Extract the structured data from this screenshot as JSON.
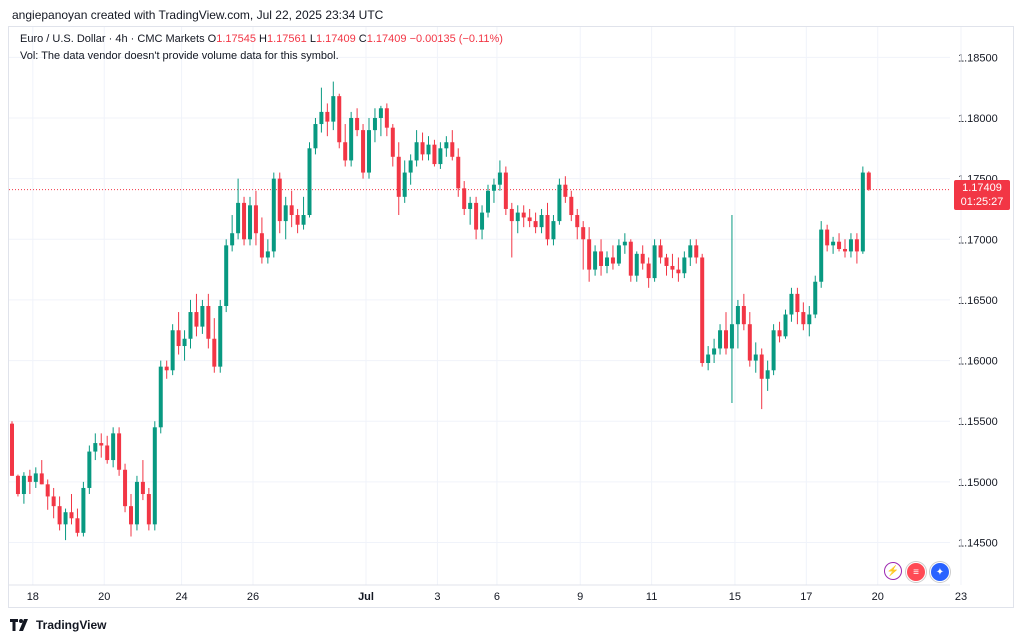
{
  "header": {
    "text": "angiepanoyan created with TradingView.com, Jul 22, 2025 23:34 UTC"
  },
  "legend": {
    "symbol": "Euro / U.S. Dollar · 4h · CMC Markets",
    "open_label": "O",
    "open": "1.17545",
    "high_label": "H",
    "high": "1.17561",
    "low_label": "L",
    "low": "1.17409",
    "close_label": "C",
    "close": "1.17409",
    "change": "−0.00135 (−0.11%)",
    "vol_note": "Vol: The data vendor doesn't provide volume data for this symbol."
  },
  "last_price": {
    "price": "1.17409",
    "countdown": "01:25:27"
  },
  "footer": {
    "brand": "TradingView"
  },
  "badges": [
    "bolt-icon",
    "us-flag-icon",
    "eu-flag-icon"
  ],
  "colors": {
    "up": "#089981",
    "down": "#f23645",
    "grid": "#f0f3fa",
    "text": "#131722"
  },
  "chart_data": {
    "type": "candlestick",
    "title": "Euro / U.S. Dollar · 4h · CMC Markets",
    "ylim": [
      1.1415,
      1.1875
    ],
    "y_ticks": [
      "1.14500",
      "1.15000",
      "1.15500",
      "1.16000",
      "1.16500",
      "1.17000",
      "1.17500",
      "1.18000",
      "1.18500"
    ],
    "x_ticks": [
      "18",
      "20",
      "24",
      "26",
      "Jul",
      "3",
      "6",
      "9",
      "11",
      "15",
      "17",
      "20",
      "23"
    ],
    "x_tick_index": [
      3.5,
      15.5,
      28.5,
      40.5,
      59.5,
      71.5,
      81.5,
      95.5,
      107.5,
      121.5,
      133.5,
      145.5,
      159.5
    ],
    "last_price_line": 1.17409,
    "candles": [
      [
        1.1548,
        1.155,
        1.1505,
        1.1505
      ],
      [
        1.1505,
        1.1506,
        1.1488,
        1.149
      ],
      [
        1.149,
        1.1508,
        1.1482,
        1.1505
      ],
      [
        1.1505,
        1.151,
        1.149,
        1.15
      ],
      [
        1.15,
        1.1512,
        1.1495,
        1.1507
      ],
      [
        1.1507,
        1.1518,
        1.1498,
        1.1498
      ],
      [
        1.1498,
        1.1502,
        1.1477,
        1.1488
      ],
      [
        1.1488,
        1.1495,
        1.147,
        1.148
      ],
      [
        1.148,
        1.1488,
        1.146,
        1.1465
      ],
      [
        1.1465,
        1.1478,
        1.1452,
        1.1475
      ],
      [
        1.1475,
        1.149,
        1.1465,
        1.147
      ],
      [
        1.147,
        1.1478,
        1.1455,
        1.1458
      ],
      [
        1.1458,
        1.15,
        1.1455,
        1.1495
      ],
      [
        1.1495,
        1.153,
        1.149,
        1.1525
      ],
      [
        1.1525,
        1.154,
        1.1518,
        1.1532
      ],
      [
        1.1532,
        1.154,
        1.152,
        1.153
      ],
      [
        1.153,
        1.1538,
        1.1515,
        1.1518
      ],
      [
        1.1518,
        1.1545,
        1.1512,
        1.154
      ],
      [
        1.154,
        1.1545,
        1.1505,
        1.151
      ],
      [
        1.151,
        1.1515,
        1.1475,
        1.148
      ],
      [
        1.148,
        1.149,
        1.1455,
        1.1465
      ],
      [
        1.1465,
        1.1505,
        1.146,
        1.15
      ],
      [
        1.15,
        1.1518,
        1.1485,
        1.149
      ],
      [
        1.149,
        1.1495,
        1.146,
        1.1465
      ],
      [
        1.1465,
        1.155,
        1.146,
        1.1545
      ],
      [
        1.1545,
        1.16,
        1.154,
        1.1595
      ],
      [
        1.1595,
        1.16,
        1.1585,
        1.1592
      ],
      [
        1.1592,
        1.163,
        1.1588,
        1.1625
      ],
      [
        1.1625,
        1.164,
        1.1605,
        1.1612
      ],
      [
        1.1612,
        1.1625,
        1.16,
        1.1618
      ],
      [
        1.1618,
        1.165,
        1.161,
        1.164
      ],
      [
        1.164,
        1.1655,
        1.162,
        1.1628
      ],
      [
        1.1628,
        1.165,
        1.1622,
        1.1645
      ],
      [
        1.1645,
        1.1655,
        1.161,
        1.1618
      ],
      [
        1.1618,
        1.1635,
        1.159,
        1.1595
      ],
      [
        1.1595,
        1.165,
        1.159,
        1.1645
      ],
      [
        1.1645,
        1.17,
        1.164,
        1.1695
      ],
      [
        1.1695,
        1.172,
        1.169,
        1.1705
      ],
      [
        1.1705,
        1.175,
        1.17,
        1.173
      ],
      [
        1.173,
        1.1735,
        1.1695,
        1.17
      ],
      [
        1.17,
        1.1735,
        1.1695,
        1.1728
      ],
      [
        1.1728,
        1.174,
        1.1695,
        1.1705
      ],
      [
        1.1705,
        1.1718,
        1.168,
        1.1685
      ],
      [
        1.1685,
        1.17,
        1.168,
        1.169
      ],
      [
        1.169,
        1.1755,
        1.1685,
        1.175
      ],
      [
        1.175,
        1.1755,
        1.1705,
        1.1715
      ],
      [
        1.1715,
        1.1735,
        1.17,
        1.1728
      ],
      [
        1.1728,
        1.174,
        1.171,
        1.172
      ],
      [
        1.172,
        1.1725,
        1.1705,
        1.1712
      ],
      [
        1.1712,
        1.1735,
        1.1708,
        1.172
      ],
      [
        1.172,
        1.178,
        1.1718,
        1.1775
      ],
      [
        1.1775,
        1.18,
        1.177,
        1.1795
      ],
      [
        1.1795,
        1.1825,
        1.1788,
        1.1805
      ],
      [
        1.1805,
        1.1812,
        1.1785,
        1.1797
      ],
      [
        1.1797,
        1.183,
        1.179,
        1.1818
      ],
      [
        1.1818,
        1.182,
        1.1775,
        1.178
      ],
      [
        1.178,
        1.1795,
        1.176,
        1.1765
      ],
      [
        1.1765,
        1.1805,
        1.176,
        1.18
      ],
      [
        1.18,
        1.1808,
        1.1785,
        1.179
      ],
      [
        1.179,
        1.1795,
        1.175,
        1.1755
      ],
      [
        1.1755,
        1.18,
        1.175,
        1.179
      ],
      [
        1.179,
        1.1808,
        1.178,
        1.18
      ],
      [
        1.18,
        1.181,
        1.1785,
        1.1808
      ],
      [
        1.1808,
        1.1812,
        1.1785,
        1.1792
      ],
      [
        1.1792,
        1.1795,
        1.176,
        1.1768
      ],
      [
        1.1768,
        1.178,
        1.172,
        1.1735
      ],
      [
        1.1735,
        1.1765,
        1.173,
        1.1755
      ],
      [
        1.1755,
        1.177,
        1.1745,
        1.1765
      ],
      [
        1.1765,
        1.179,
        1.176,
        1.178
      ],
      [
        1.178,
        1.1788,
        1.1765,
        1.177
      ],
      [
        1.177,
        1.1785,
        1.1765,
        1.1778
      ],
      [
        1.1778,
        1.1782,
        1.176,
        1.1762
      ],
      [
        1.1762,
        1.178,
        1.1758,
        1.1775
      ],
      [
        1.1775,
        1.1785,
        1.1768,
        1.178
      ],
      [
        1.178,
        1.179,
        1.1765,
        1.1768
      ],
      [
        1.1768,
        1.1775,
        1.1735,
        1.1742
      ],
      [
        1.1742,
        1.1748,
        1.172,
        1.1725
      ],
      [
        1.1725,
        1.1735,
        1.1712,
        1.173
      ],
      [
        1.173,
        1.1735,
        1.17,
        1.1708
      ],
      [
        1.1708,
        1.1728,
        1.17,
        1.1722
      ],
      [
        1.1722,
        1.1745,
        1.1718,
        1.174
      ],
      [
        1.174,
        1.175,
        1.173,
        1.1745
      ],
      [
        1.1745,
        1.1765,
        1.174,
        1.1755
      ],
      [
        1.1755,
        1.176,
        1.172,
        1.1725
      ],
      [
        1.1725,
        1.173,
        1.1685,
        1.1715
      ],
      [
        1.1715,
        1.1728,
        1.1705,
        1.1722
      ],
      [
        1.1722,
        1.1728,
        1.171,
        1.1718
      ],
      [
        1.1718,
        1.1725,
        1.171,
        1.1715
      ],
      [
        1.1715,
        1.1722,
        1.1705,
        1.171
      ],
      [
        1.171,
        1.1725,
        1.1705,
        1.172
      ],
      [
        1.172,
        1.173,
        1.1695,
        1.17
      ],
      [
        1.17,
        1.172,
        1.1695,
        1.1715
      ],
      [
        1.1715,
        1.175,
        1.1712,
        1.1745
      ],
      [
        1.1745,
        1.1752,
        1.173,
        1.1735
      ],
      [
        1.1735,
        1.174,
        1.1715,
        1.172
      ],
      [
        1.172,
        1.1725,
        1.17,
        1.171
      ],
      [
        1.171,
        1.1715,
        1.1675,
        1.17
      ],
      [
        1.17,
        1.171,
        1.1665,
        1.1675
      ],
      [
        1.1675,
        1.1695,
        1.167,
        1.169
      ],
      [
        1.169,
        1.17,
        1.167,
        1.1678
      ],
      [
        1.1678,
        1.169,
        1.1672,
        1.1685
      ],
      [
        1.1685,
        1.1695,
        1.1675,
        1.168
      ],
      [
        1.168,
        1.17,
        1.1678,
        1.1695
      ],
      [
        1.1695,
        1.1705,
        1.1688,
        1.1698
      ],
      [
        1.1698,
        1.17,
        1.1665,
        1.167
      ],
      [
        1.167,
        1.169,
        1.1665,
        1.1688
      ],
      [
        1.1688,
        1.1695,
        1.1675,
        1.168
      ],
      [
        1.168,
        1.1685,
        1.166,
        1.1668
      ],
      [
        1.1668,
        1.17,
        1.1665,
        1.1695
      ],
      [
        1.1695,
        1.17,
        1.168,
        1.1685
      ],
      [
        1.1685,
        1.1688,
        1.167,
        1.1678
      ],
      [
        1.1678,
        1.1688,
        1.1668,
        1.1675
      ],
      [
        1.1675,
        1.1685,
        1.1665,
        1.1672
      ],
      [
        1.1672,
        1.169,
        1.1668,
        1.1685
      ],
      [
        1.1685,
        1.17,
        1.1678,
        1.1695
      ],
      [
        1.1695,
        1.17,
        1.168,
        1.1685
      ],
      [
        1.1685,
        1.1688,
        1.1595,
        1.1598
      ],
      [
        1.1598,
        1.1612,
        1.1592,
        1.1605
      ],
      [
        1.1605,
        1.1618,
        1.1598,
        1.161
      ],
      [
        1.161,
        1.163,
        1.1605,
        1.1625
      ],
      [
        1.1625,
        1.164,
        1.1605,
        1.161
      ],
      [
        1.161,
        1.172,
        1.1565,
        1.163
      ],
      [
        1.163,
        1.165,
        1.161,
        1.1645
      ],
      [
        1.1645,
        1.1655,
        1.1625,
        1.163
      ],
      [
        1.163,
        1.164,
        1.1595,
        1.16
      ],
      [
        1.16,
        1.1615,
        1.159,
        1.1605
      ],
      [
        1.1605,
        1.161,
        1.156,
        1.1585
      ],
      [
        1.1585,
        1.16,
        1.1575,
        1.1592
      ],
      [
        1.1592,
        1.163,
        1.1588,
        1.1625
      ],
      [
        1.1625,
        1.1632,
        1.1615,
        1.162
      ],
      [
        1.162,
        1.1642,
        1.1618,
        1.1638
      ],
      [
        1.1638,
        1.166,
        1.1632,
        1.1655
      ],
      [
        1.1655,
        1.166,
        1.163,
        1.164
      ],
      [
        1.164,
        1.1648,
        1.1625,
        1.163
      ],
      [
        1.163,
        1.1645,
        1.162,
        1.1638
      ],
      [
        1.1638,
        1.167,
        1.1635,
        1.1665
      ],
      [
        1.1665,
        1.1715,
        1.166,
        1.1708
      ],
      [
        1.1708,
        1.1712,
        1.169,
        1.1695
      ],
      [
        1.1695,
        1.1702,
        1.1688,
        1.1698
      ],
      [
        1.1698,
        1.1705,
        1.169,
        1.1692
      ],
      [
        1.1692,
        1.17,
        1.1685,
        1.169
      ],
      [
        1.169,
        1.1705,
        1.1685,
        1.17
      ],
      [
        1.17,
        1.1705,
        1.168,
        1.169
      ],
      [
        1.169,
        1.176,
        1.1688,
        1.1755
      ],
      [
        1.1755,
        1.1756,
        1.174,
        1.1741
      ]
    ]
  }
}
